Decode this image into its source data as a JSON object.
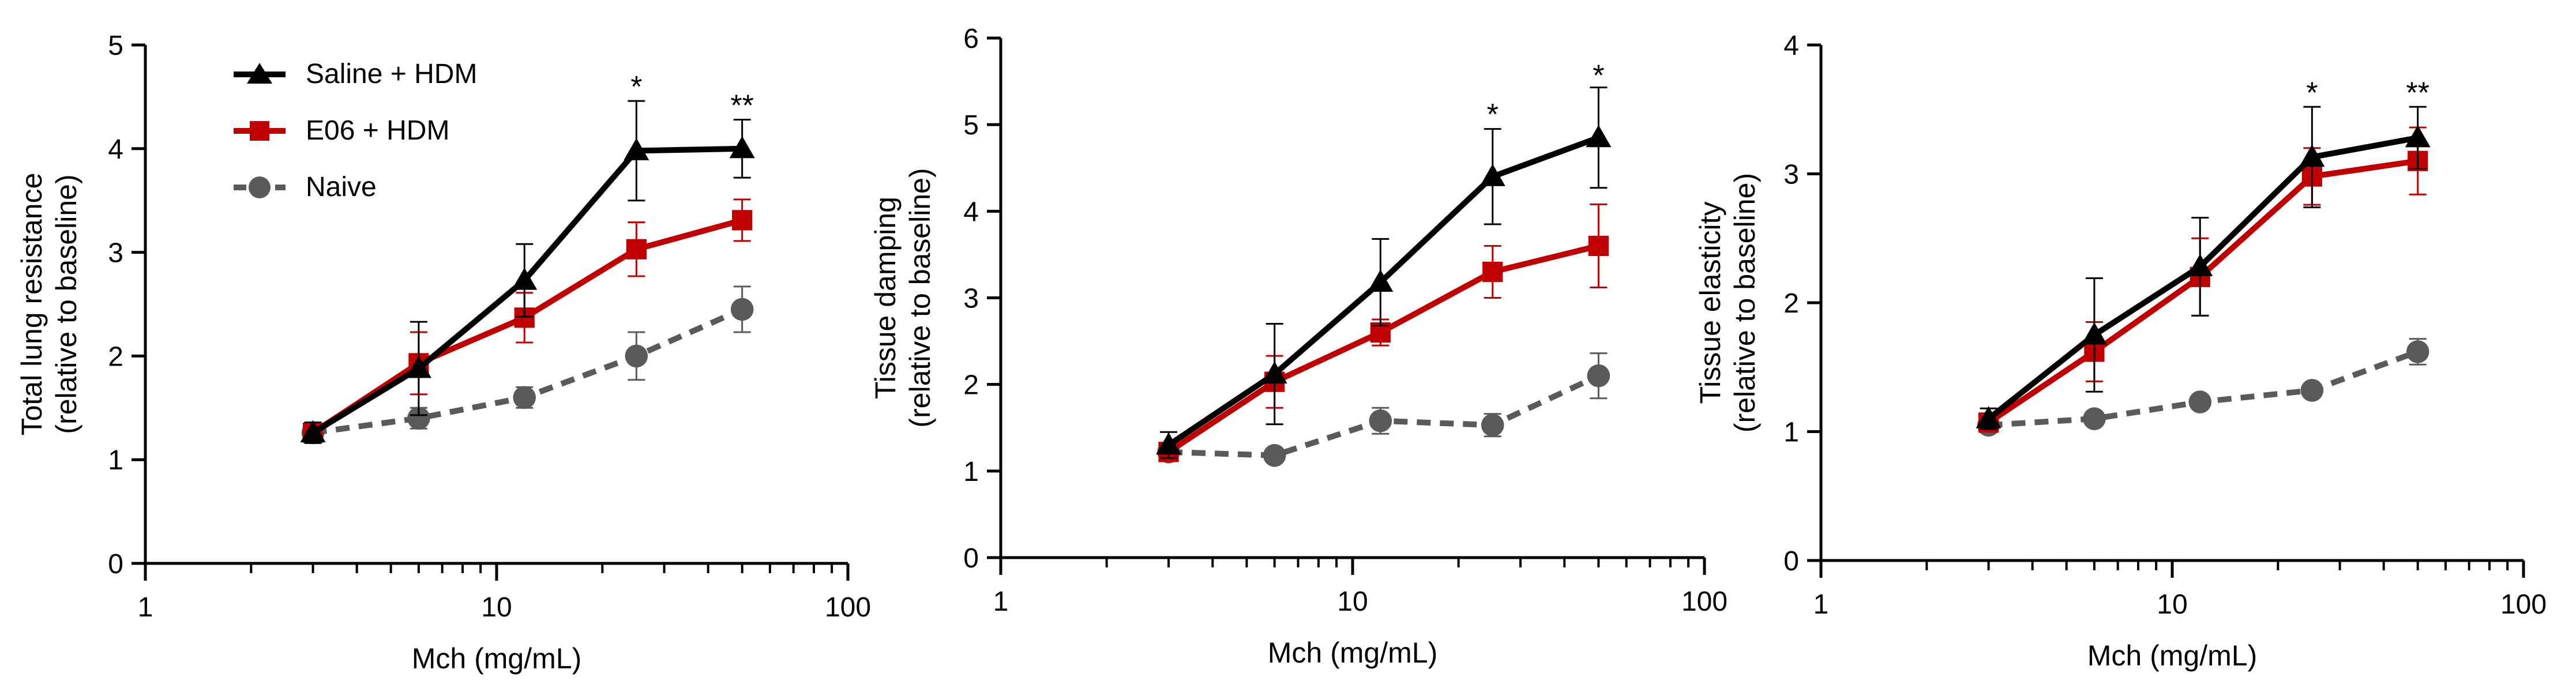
{
  "colors": {
    "saline": "#000000",
    "e06": "#c00000",
    "naive": "#5a5a5a",
    "axis": "#000000"
  },
  "legend": {
    "entries": [
      "Saline + HDM",
      "E06 + HDM",
      "Naive"
    ]
  },
  "chart_data": [
    {
      "type": "line",
      "xscale": "log",
      "xlabel": "Mch (mg/mL)",
      "ylabel": [
        "Total lung resistance",
        "(relative to baseline)"
      ],
      "xlim": [
        1,
        100
      ],
      "ylim": [
        0,
        5
      ],
      "xticks": [
        1,
        10,
        100
      ],
      "xtick_labels": [
        "1",
        "10",
        "100"
      ],
      "yticks": [
        0,
        1,
        2,
        3,
        4,
        5
      ],
      "ytick_labels": [
        "0",
        "1",
        "2",
        "3",
        "4",
        "5"
      ],
      "x": [
        3,
        6,
        12,
        25,
        50
      ],
      "series": [
        {
          "name": "Saline + HDM",
          "key": "saline",
          "marker": "triangle",
          "dash": false,
          "values": [
            1.26,
            1.88,
            2.73,
            3.98,
            4.0
          ],
          "errors": [
            0.1,
            0.45,
            0.35,
            0.48,
            0.28
          ]
        },
        {
          "name": "E06 + HDM",
          "key": "e06",
          "marker": "square",
          "dash": false,
          "values": [
            1.26,
            1.93,
            2.37,
            3.03,
            3.31
          ],
          "errors": [
            0.08,
            0.3,
            0.24,
            0.26,
            0.2
          ]
        },
        {
          "name": "Naive",
          "key": "naive",
          "marker": "circle",
          "dash": true,
          "values": [
            1.26,
            1.4,
            1.6,
            2.0,
            2.45
          ],
          "errors": [
            0.05,
            0.1,
            0.1,
            0.23,
            0.22
          ]
        }
      ],
      "annotations": [
        {
          "x": 25,
          "y": 4.5,
          "text": "*"
        },
        {
          "x": 50,
          "y": 4.32,
          "text": "**"
        }
      ]
    },
    {
      "type": "line",
      "xscale": "log",
      "xlabel": "Mch (mg/mL)",
      "ylabel": [
        "Tissue damping",
        "(relative to baseline)"
      ],
      "xlim": [
        1,
        100
      ],
      "ylim": [
        0,
        6
      ],
      "xticks": [
        1,
        10,
        100
      ],
      "xtick_labels": [
        "1",
        "10",
        "100"
      ],
      "yticks": [
        0,
        1,
        2,
        3,
        4,
        5,
        6
      ],
      "ytick_labels": [
        "0",
        "1",
        "2",
        "3",
        "4",
        "5",
        "6"
      ],
      "x": [
        3,
        6,
        12,
        25,
        50
      ],
      "series": [
        {
          "name": "Saline + HDM",
          "key": "saline",
          "marker": "triangle",
          "dash": false,
          "values": [
            1.3,
            2.12,
            3.18,
            4.4,
            4.85
          ],
          "errors": [
            0.15,
            0.58,
            0.5,
            0.55,
            0.58
          ]
        },
        {
          "name": "E06 + HDM",
          "key": "e06",
          "marker": "square",
          "dash": false,
          "values": [
            1.22,
            2.03,
            2.6,
            3.3,
            3.6
          ],
          "errors": [
            0.1,
            0.3,
            0.15,
            0.3,
            0.48
          ]
        },
        {
          "name": "Naive",
          "key": "naive",
          "marker": "circle",
          "dash": true,
          "values": [
            1.22,
            1.18,
            1.58,
            1.53,
            2.1
          ],
          "errors": [
            0.05,
            0.05,
            0.15,
            0.13,
            0.26
          ]
        }
      ],
      "annotations": [
        {
          "x": 25,
          "y": 5.0,
          "text": "*"
        },
        {
          "x": 50,
          "y": 5.45,
          "text": "*"
        }
      ]
    },
    {
      "type": "line",
      "xscale": "log",
      "xlabel": "Mch (mg/mL)",
      "ylabel": [
        "Tissue elasticity",
        "(relative to baseline)"
      ],
      "xlim": [
        1,
        100
      ],
      "ylim": [
        0,
        4
      ],
      "xticks": [
        1,
        10,
        100
      ],
      "xtick_labels": [
        "1",
        "10",
        "100"
      ],
      "yticks": [
        0,
        1,
        2,
        3,
        4
      ],
      "ytick_labels": [
        "0",
        "1",
        "2",
        "3",
        "4"
      ],
      "x": [
        3,
        6,
        12,
        25,
        50
      ],
      "series": [
        {
          "name": "Saline + HDM",
          "key": "saline",
          "marker": "triangle",
          "dash": false,
          "values": [
            1.1,
            1.75,
            2.28,
            3.13,
            3.28
          ],
          "errors": [
            0.08,
            0.44,
            0.38,
            0.39,
            0.24
          ]
        },
        {
          "name": "E06 + HDM",
          "key": "e06",
          "marker": "square",
          "dash": false,
          "values": [
            1.07,
            1.62,
            2.2,
            2.98,
            3.1
          ],
          "errors": [
            0.05,
            0.23,
            0.3,
            0.22,
            0.26
          ]
        },
        {
          "name": "Naive",
          "key": "naive",
          "marker": "circle",
          "dash": true,
          "values": [
            1.05,
            1.1,
            1.23,
            1.32,
            1.62
          ],
          "errors": [
            0.03,
            0.03,
            0.03,
            0.04,
            0.1
          ]
        }
      ],
      "annotations": [
        {
          "x": 25,
          "y": 3.55,
          "text": "*"
        },
        {
          "x": 50,
          "y": 3.55,
          "text": "**"
        }
      ]
    }
  ]
}
